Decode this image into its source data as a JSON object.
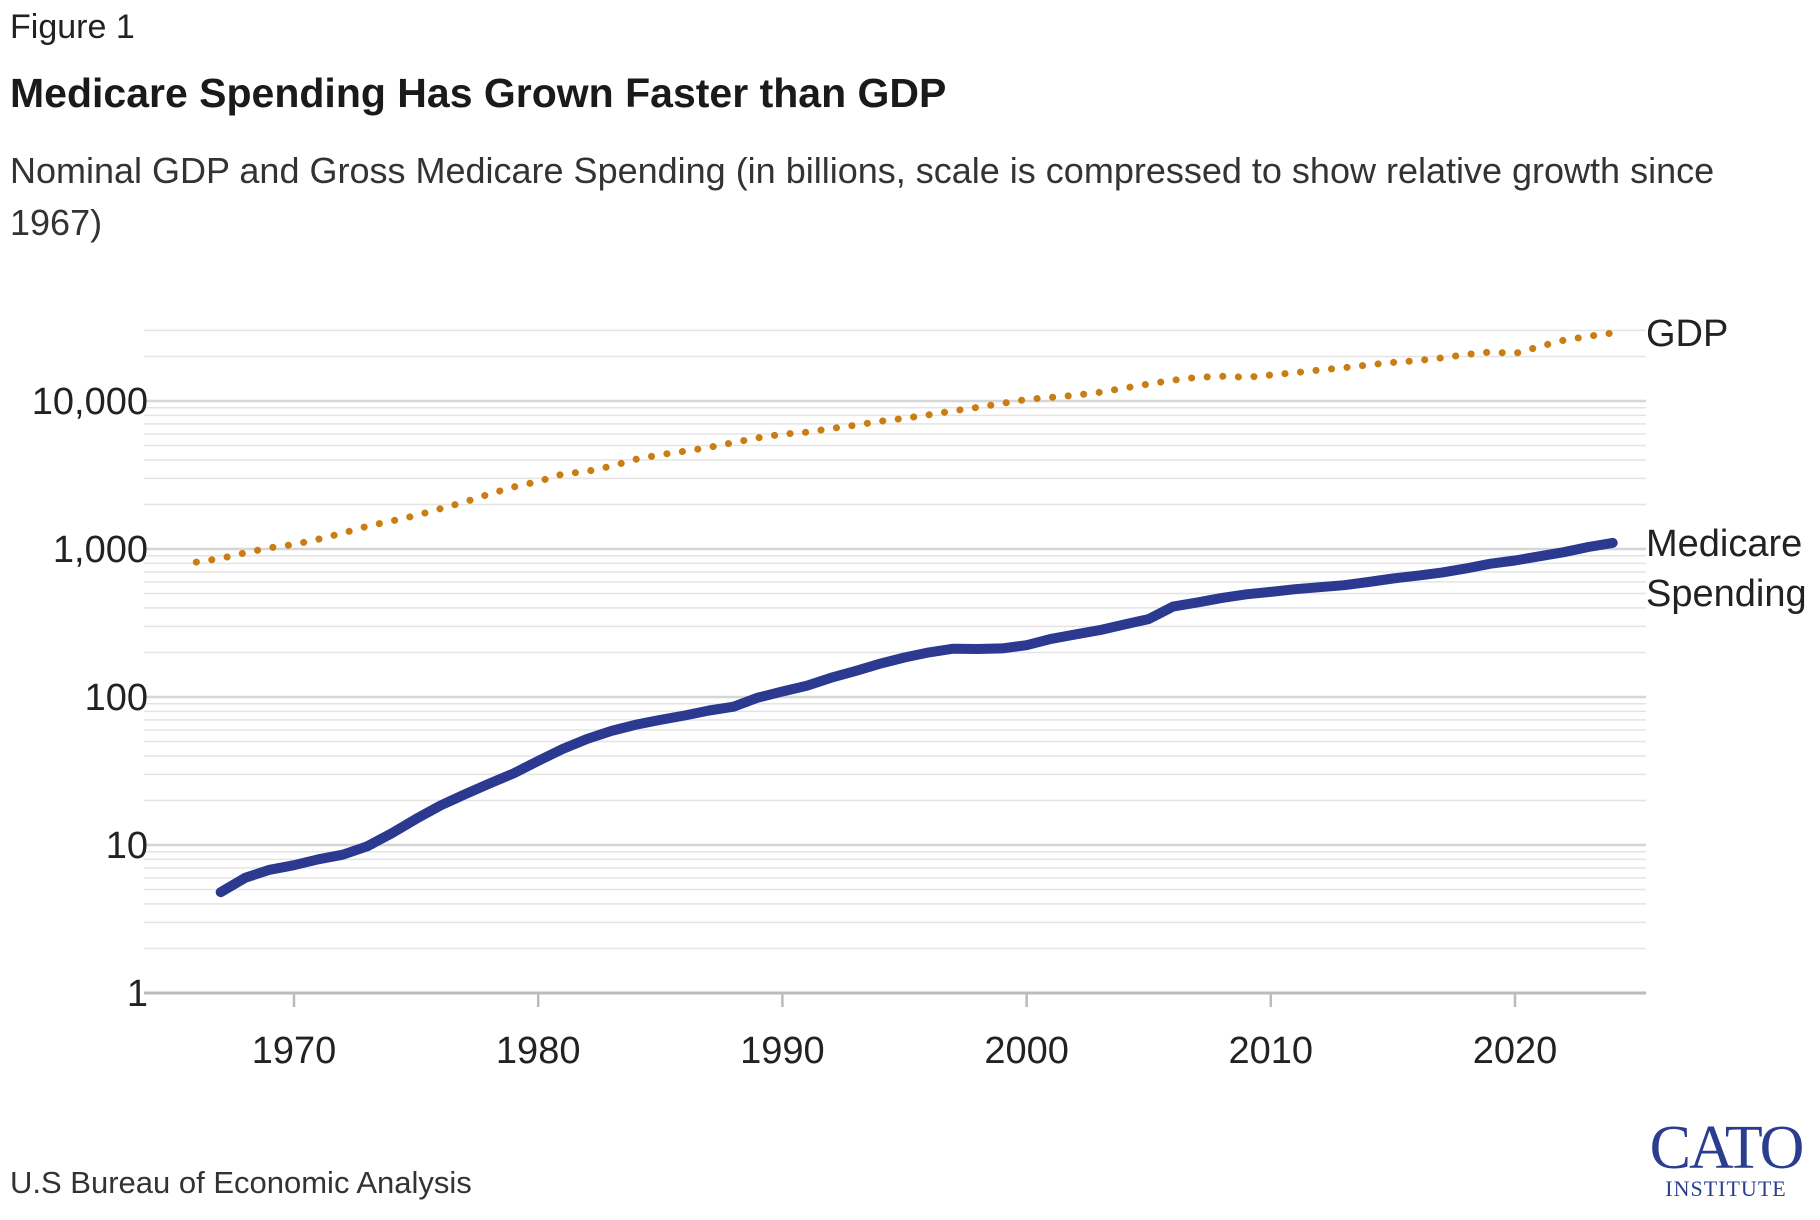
{
  "figure_label": "Figure 1",
  "title": "Medicare Spending Has Grown Faster than GDP",
  "subtitle": "Nominal GDP and Gross Medicare Spending (in billions, scale is compressed to show relative growth since 1967)",
  "source": "U.S Bureau of Economic Analysis",
  "logo": {
    "main": "CATO",
    "sub": "INSTITUTE"
  },
  "colors": {
    "gdp": "#c97d12",
    "medicare": "#2b3990",
    "grid": "#e4e4e4",
    "axis": "#bbbbbb",
    "text": "#222222"
  },
  "chart_data": {
    "type": "line",
    "title": "Medicare Spending Has Grown Faster than GDP",
    "xlabel": "",
    "ylabel": "",
    "yscale": "log",
    "ylim": [
      1,
      30000
    ],
    "xlim": [
      1965,
      2025
    ],
    "x_ticks": [
      1970,
      1980,
      1990,
      2000,
      2010,
      2020
    ],
    "y_ticks": [
      {
        "value": 1,
        "label": "1"
      },
      {
        "value": 10,
        "label": "10"
      },
      {
        "value": 100,
        "label": "100"
      },
      {
        "value": 1000,
        "label": "1,000"
      },
      {
        "value": 10000,
        "label": "10,000"
      }
    ],
    "grid": true,
    "series": [
      {
        "name": "GDP",
        "label_lines": [
          "GDP"
        ],
        "style": "dotted",
        "color": "#c97d12",
        "x": [
          1966,
          1967,
          1968,
          1969,
          1970,
          1971,
          1972,
          1973,
          1974,
          1975,
          1976,
          1977,
          1978,
          1979,
          1980,
          1981,
          1982,
          1983,
          1984,
          1985,
          1986,
          1987,
          1988,
          1989,
          1990,
          1991,
          1992,
          1993,
          1994,
          1995,
          1996,
          1997,
          1998,
          1999,
          2000,
          2001,
          2002,
          2003,
          2004,
          2005,
          2006,
          2007,
          2008,
          2009,
          2010,
          2011,
          2012,
          2013,
          2014,
          2015,
          2016,
          2017,
          2018,
          2019,
          2020,
          2021,
          2022,
          2023,
          2024
        ],
        "values": [
          815,
          862,
          943,
          1019,
          1073,
          1165,
          1280,
          1425,
          1545,
          1685,
          1873,
          2082,
          2352,
          2627,
          2857,
          3207,
          3343,
          3634,
          4037,
          4339,
          4580,
          4855,
          5236,
          5642,
          5963,
          6158,
          6520,
          6859,
          7287,
          7640,
          8073,
          8578,
          9063,
          9631,
          10251,
          10582,
          10936,
          11458,
          12214,
          13037,
          13815,
          14452,
          14713,
          14449,
          14992,
          15543,
          16197,
          16785,
          17527,
          18238,
          18745,
          19543,
          20612,
          21433,
          20937,
          23315,
          25744,
          27357,
          28800
        ]
      },
      {
        "name": "Medicare Spending",
        "label_lines": [
          "Medicare",
          "Spending"
        ],
        "style": "solid",
        "color": "#2b3990",
        "x": [
          1967,
          1968,
          1969,
          1970,
          1971,
          1972,
          1973,
          1974,
          1975,
          1976,
          1977,
          1978,
          1979,
          1980,
          1981,
          1982,
          1983,
          1984,
          1985,
          1986,
          1987,
          1988,
          1989,
          1990,
          1991,
          1992,
          1993,
          1994,
          1995,
          1996,
          1997,
          1998,
          1999,
          2000,
          2001,
          2002,
          2003,
          2004,
          2005,
          2006,
          2007,
          2008,
          2009,
          2010,
          2011,
          2012,
          2013,
          2014,
          2015,
          2016,
          2017,
          2018,
          2019,
          2020,
          2021,
          2022,
          2023,
          2024
        ],
        "values": [
          4.8,
          6.0,
          6.8,
          7.3,
          8.0,
          8.6,
          9.8,
          12.0,
          15.0,
          18.5,
          22.0,
          26.0,
          30.5,
          37.0,
          44.5,
          52.0,
          59.0,
          65.0,
          70.0,
          75.0,
          81.0,
          86.0,
          99.0,
          109.0,
          119.0,
          135.0,
          150.0,
          168.0,
          185.0,
          200.0,
          212.0,
          211.0,
          213.0,
          224.0,
          247.0,
          265.0,
          283.0,
          309.0,
          336.0,
          408.0,
          436.0,
          467.0,
          494.0,
          513.0,
          535.0,
          552.0,
          569.0,
          598.0,
          632.0,
          660.0,
          693.0,
          739.0,
          796.0,
          836.0,
          893.0,
          952.0,
          1032.0,
          1100.0
        ]
      }
    ]
  }
}
